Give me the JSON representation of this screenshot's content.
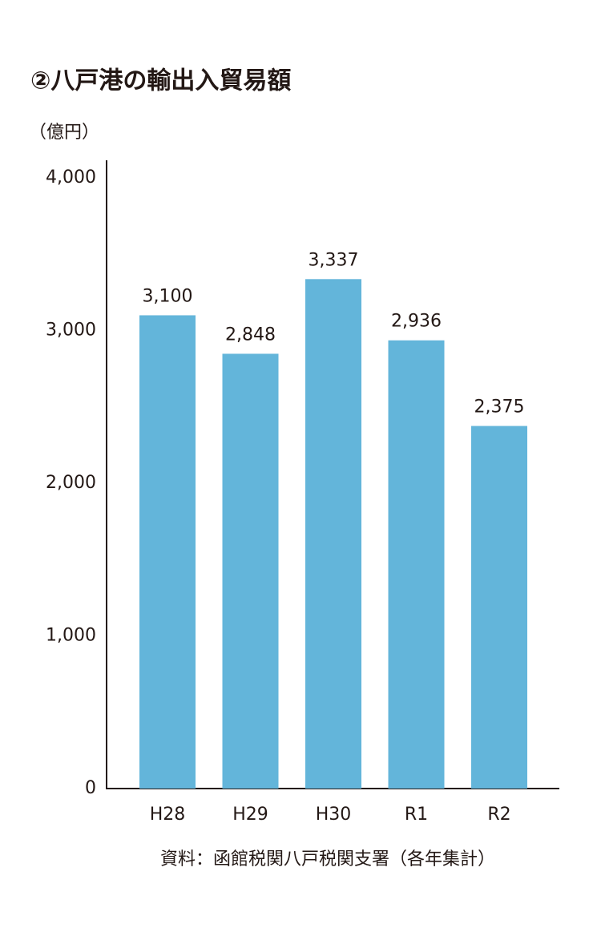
{
  "chart_data": {
    "type": "bar",
    "title": "②八戸港の輸出入貿易額",
    "y_label": "（億円）",
    "source": "資料：函館税関八戸税関支署（各年集計）",
    "categories": [
      "H28",
      "H29",
      "H30",
      "R1",
      "R2"
    ],
    "values": [
      3100,
      2848,
      3337,
      2936,
      2375
    ],
    "value_labels": [
      "3,100",
      "2,848",
      "3,337",
      "2,936",
      "2,375"
    ],
    "color": "#63b5da",
    "ylim": [
      0,
      4000
    ],
    "yticks": [
      0,
      {
        "value": 1000,
        "label": "1,000"
      },
      {
        "value": 2000,
        "label": "2,000"
      },
      {
        "value": 3000,
        "label": "3,000"
      },
      {
        "value": 4000,
        "label": "4,000"
      }
    ],
    "grid": false
  }
}
